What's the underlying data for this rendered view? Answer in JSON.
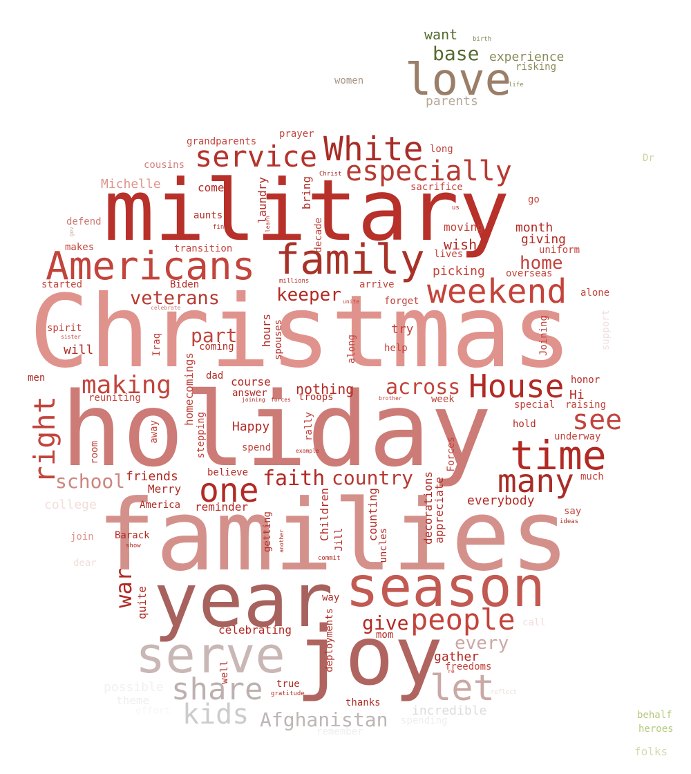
{
  "palette": {
    "red_dark": "#b22a24",
    "red": "#c0392b",
    "pink": "#e0938c",
    "rose": "#cd7b76",
    "mauve": "#a8625e",
    "grey_pink": "#c9b7b5",
    "olive": "#556b2f",
    "olive_light": "#8a8a5a",
    "tan": "#9a7e68",
    "yellow_green": "#b5c97a"
  },
  "words": [
    {
      "text": "Christmas"
    },
    {
      "text": "holiday"
    },
    {
      "text": "families"
    },
    {
      "text": "military"
    },
    {
      "text": "year"
    },
    {
      "text": "season"
    },
    {
      "text": "joy"
    },
    {
      "text": "serve"
    },
    {
      "text": "love"
    },
    {
      "text": "family"
    },
    {
      "text": "Americans"
    },
    {
      "text": "White"
    },
    {
      "text": "service"
    },
    {
      "text": "especially"
    },
    {
      "text": "weekend"
    },
    {
      "text": "House"
    },
    {
      "text": "time"
    },
    {
      "text": "many"
    },
    {
      "text": "one"
    },
    {
      "text": "share"
    },
    {
      "text": "let"
    },
    {
      "text": "people"
    },
    {
      "text": "kids"
    },
    {
      "text": "Afghanistan"
    },
    {
      "text": "making"
    },
    {
      "text": "right"
    },
    {
      "text": "see"
    },
    {
      "text": "across"
    },
    {
      "text": "school"
    },
    {
      "text": "faith"
    },
    {
      "text": "country"
    },
    {
      "text": "war"
    },
    {
      "text": "veterans"
    },
    {
      "text": "keeper"
    },
    {
      "text": "base"
    },
    {
      "text": "home"
    },
    {
      "text": "part"
    },
    {
      "text": "give"
    },
    {
      "text": "every"
    },
    {
      "text": "want"
    },
    {
      "text": "experience"
    },
    {
      "text": "parents"
    },
    {
      "text": "risking"
    },
    {
      "text": "women"
    },
    {
      "text": "birth"
    },
    {
      "text": "life"
    },
    {
      "text": "Dr"
    },
    {
      "text": "grandparents"
    },
    {
      "text": "prayer"
    },
    {
      "text": "long"
    },
    {
      "text": "cousins"
    },
    {
      "text": "Christ"
    },
    {
      "text": "Michelle"
    },
    {
      "text": "come"
    },
    {
      "text": "laundry"
    },
    {
      "text": "bring"
    },
    {
      "text": "sacrifice"
    },
    {
      "text": "go"
    },
    {
      "text": "defend"
    },
    {
      "text": "aunts"
    },
    {
      "text": "find"
    },
    {
      "text": "learn"
    },
    {
      "text": "us"
    },
    {
      "text": "decade"
    },
    {
      "text": "moving"
    },
    {
      "text": "month"
    },
    {
      "text": "gov"
    },
    {
      "text": "makes"
    },
    {
      "text": "transition"
    },
    {
      "text": "wish"
    },
    {
      "text": "giving"
    },
    {
      "text": "uniform"
    },
    {
      "text": "lives"
    },
    {
      "text": "picking"
    },
    {
      "text": "overseas"
    },
    {
      "text": "started"
    },
    {
      "text": "Biden"
    },
    {
      "text": "millions"
    },
    {
      "text": "arrive"
    },
    {
      "text": "alone"
    },
    {
      "text": "unite"
    },
    {
      "text": "forget"
    },
    {
      "text": "celebrate"
    },
    {
      "text": "spirit"
    },
    {
      "text": "sister"
    },
    {
      "text": "will"
    },
    {
      "text": "Iraq"
    },
    {
      "text": "coming"
    },
    {
      "text": "hours"
    },
    {
      "text": "spouses"
    },
    {
      "text": "try"
    },
    {
      "text": "help"
    },
    {
      "text": "along"
    },
    {
      "text": "Joining"
    },
    {
      "text": "support"
    },
    {
      "text": "men"
    },
    {
      "text": "dad"
    },
    {
      "text": "homecomings"
    },
    {
      "text": "course"
    },
    {
      "text": "answer"
    },
    {
      "text": "nothing"
    },
    {
      "text": "troops"
    },
    {
      "text": "honor"
    },
    {
      "text": "Hi"
    },
    {
      "text": "reuniting"
    },
    {
      "text": "joining"
    },
    {
      "text": "forces"
    },
    {
      "text": "brother"
    },
    {
      "text": "week"
    },
    {
      "text": "special"
    },
    {
      "text": "raising"
    },
    {
      "text": "stepping"
    },
    {
      "text": "away"
    },
    {
      "text": "room"
    },
    {
      "text": "Happy"
    },
    {
      "text": "rally"
    },
    {
      "text": "hold"
    },
    {
      "text": "underway"
    },
    {
      "text": "spend"
    },
    {
      "text": "example"
    },
    {
      "text": "Forces"
    },
    {
      "text": "believe"
    },
    {
      "text": "friends"
    },
    {
      "text": "much"
    },
    {
      "text": "Merry"
    },
    {
      "text": "decorations"
    },
    {
      "text": "appreciate"
    },
    {
      "text": "everybody"
    },
    {
      "text": "college"
    },
    {
      "text": "America"
    },
    {
      "text": "reminder"
    },
    {
      "text": "Children"
    },
    {
      "text": "counting"
    },
    {
      "text": "say"
    },
    {
      "text": "join"
    },
    {
      "text": "Barack"
    },
    {
      "text": "getting"
    },
    {
      "text": "another"
    },
    {
      "text": "Jill"
    },
    {
      "text": "uncles"
    },
    {
      "text": "ideas"
    },
    {
      "text": "show"
    },
    {
      "text": "dear"
    },
    {
      "text": "commit"
    },
    {
      "text": "quite"
    },
    {
      "text": "way"
    },
    {
      "text": "call"
    },
    {
      "text": "celebrating"
    },
    {
      "text": "mom"
    },
    {
      "text": "gather"
    },
    {
      "text": "freedoms"
    },
    {
      "text": "re"
    },
    {
      "text": "deployments"
    },
    {
      "text": "well"
    },
    {
      "text": "possible"
    },
    {
      "text": "true"
    },
    {
      "text": "reflect"
    },
    {
      "text": "theme"
    },
    {
      "text": "gratitude"
    },
    {
      "text": "effort"
    },
    {
      "text": "thanks"
    },
    {
      "text": "incredible"
    },
    {
      "text": "spending"
    },
    {
      "text": "remember"
    },
    {
      "text": "behalf"
    },
    {
      "text": "heroes"
    },
    {
      "text": "folks"
    }
  ]
}
